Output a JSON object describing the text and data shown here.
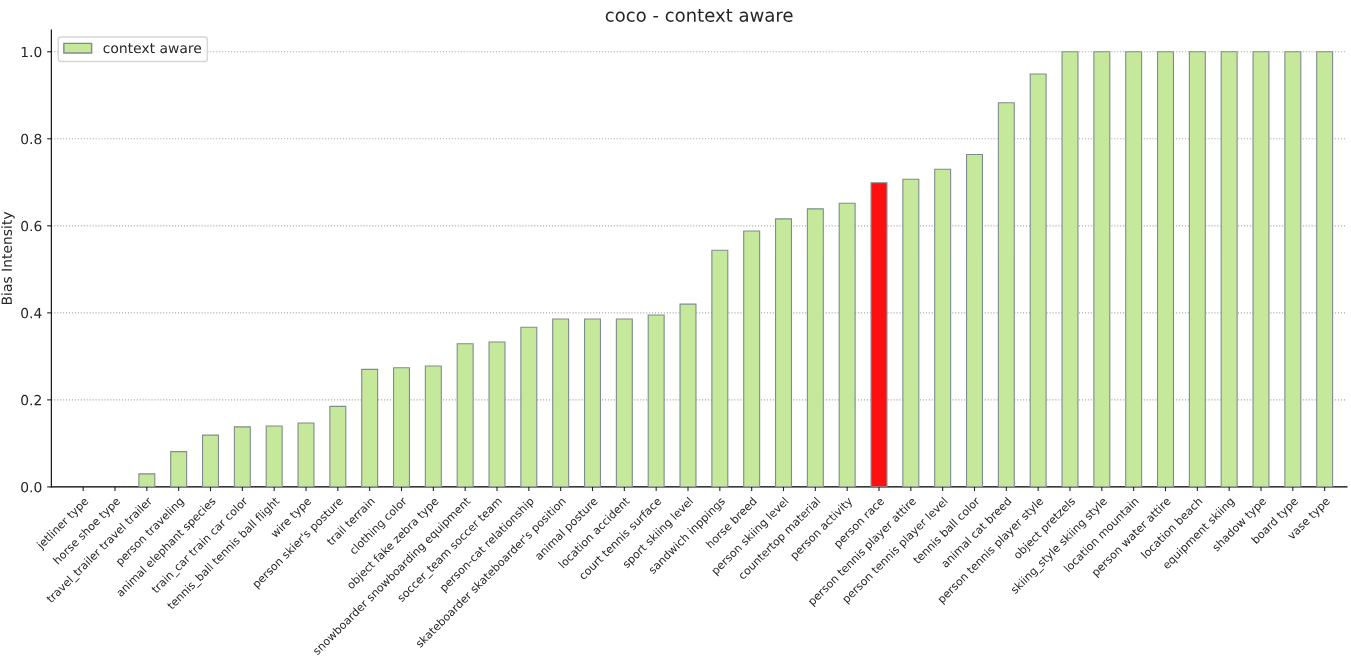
{
  "chart_data": {
    "type": "bar",
    "title": "coco - context aware",
    "ylabel": "Bias Intensity",
    "categories": [
      "jetliner type",
      "horse shoe type",
      "travel_trailer travel trailer",
      "person traveling",
      "animal elephant species",
      "train_car train car color",
      "tennis_ball tennis ball flight",
      "wire type",
      "person skier's posture",
      "trail terrain",
      "clothing color",
      "object fake zebra type",
      "snowboarder snowboarding equipment",
      "soccer_team soccer team",
      "person-cat relationship",
      "skateboarder skateboarder's position",
      "animal posture",
      "location accident",
      "court tennis surface",
      "sport skiing level",
      "sandwich inppings",
      "horse breed",
      "person skiing level",
      "countertop material",
      "person activity",
      "person race",
      "person tennis player attire",
      "person tennis player level",
      "tennis ball color",
      "animal cat breed",
      "person tennis player style",
      "object pretzels",
      "skiing_style skiing style",
      "location mountain",
      "person water attire",
      "location beach",
      "equipment skiing",
      "shadow type",
      "board type",
      "vase type"
    ],
    "series": [
      {
        "name": "context aware",
        "color": "#c6e89b",
        "values": [
          0,
          0,
          0.03,
          0.081,
          0.119,
          0.138,
          0.14,
          0.147,
          0.185,
          0.27,
          0.274,
          0.278,
          0.329,
          0.333,
          0.367,
          0.386,
          0.386,
          0.386,
          0.395,
          0.42,
          0.544,
          0.588,
          0.616,
          0.639,
          0.652,
          0.699,
          0.707,
          0.73,
          0.764,
          0.883,
          0.949,
          1.0,
          1.0,
          1.0,
          1.0,
          1.0,
          1.0,
          1.0,
          1.0,
          1.0
        ],
        "colors": [
          "#c6e89b",
          "#c6e89b",
          "#c6e89b",
          "#c6e89b",
          "#c6e89b",
          "#c6e89b",
          "#c6e89b",
          "#c6e89b",
          "#c6e89b",
          "#c6e89b",
          "#c6e89b",
          "#c6e89b",
          "#c6e89b",
          "#c6e89b",
          "#c6e89b",
          "#c6e89b",
          "#c6e89b",
          "#c6e89b",
          "#c6e89b",
          "#c6e89b",
          "#c6e89b",
          "#c6e89b",
          "#c6e89b",
          "#c6e89b",
          "#c6e89b",
          "#ff1010",
          "#c6e89b",
          "#c6e89b",
          "#c6e89b",
          "#c6e89b",
          "#c6e89b",
          "#c6e89b",
          "#c6e89b",
          "#c6e89b",
          "#c6e89b",
          "#c6e89b",
          "#c6e89b",
          "#c6e89b",
          "#c6e89b",
          "#c6e89b"
        ]
      }
    ],
    "ylim": [
      0,
      1.05
    ],
    "yticks": [
      {
        "value": 0,
        "label": "0.0"
      },
      {
        "value": 0.2,
        "label": "0.2"
      },
      {
        "value": 0.4,
        "label": "0.4"
      },
      {
        "value": 0.6,
        "label": "0.6"
      },
      {
        "value": 0.8,
        "label": "0.8"
      },
      {
        "value": 1.0,
        "label": "1.0"
      }
    ],
    "grid": "y",
    "legend": "top left"
  }
}
